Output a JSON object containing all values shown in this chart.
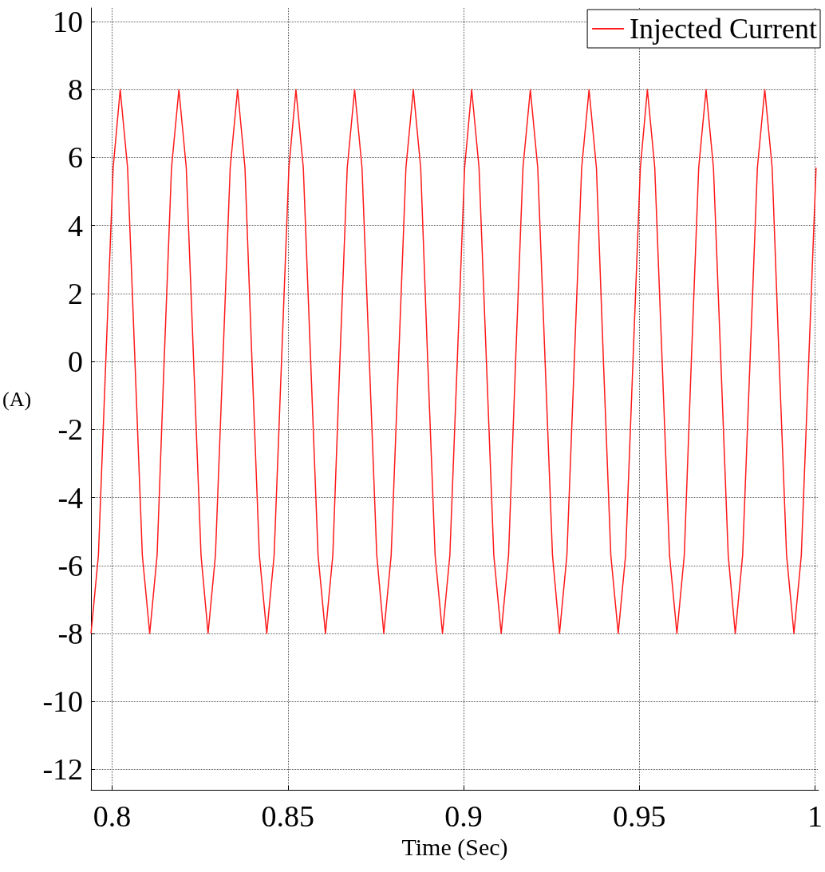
{
  "chart_data": {
    "type": "line",
    "xlabel": "Time (Sec)",
    "ylabel": "(A)",
    "xlim": [
      0.794,
      1.001
    ],
    "ylim": [
      -12.6,
      10.4
    ],
    "xticks": [
      0.8,
      0.85,
      0.9,
      0.95,
      1
    ],
    "yticks": [
      -12,
      -10,
      -8,
      -6,
      -4,
      -2,
      0,
      2,
      4,
      6,
      8,
      10
    ],
    "grid": true,
    "legend": "top right",
    "series": [
      {
        "name": "Injected Current",
        "color": "#ff1a1a",
        "x": [
          0.794,
          0.7961,
          0.7982,
          0.8003,
          0.8023,
          0.8044,
          0.8065,
          0.8086,
          0.8107,
          0.8128,
          0.8148,
          0.8169,
          0.819,
          0.8211,
          0.8232,
          0.8253,
          0.8273,
          0.8294,
          0.8315,
          0.8336,
          0.8357,
          0.8378,
          0.8398,
          0.8419,
          0.844,
          0.8461,
          0.8482,
          0.8503,
          0.8523,
          0.8544,
          0.8565,
          0.8586,
          0.8607,
          0.8628,
          0.8648,
          0.8669,
          0.869,
          0.8711,
          0.8732,
          0.8753,
          0.8773,
          0.8794,
          0.8815,
          0.8836,
          0.8857,
          0.8878,
          0.8898,
          0.8919,
          0.894,
          0.8961,
          0.8982,
          0.9003,
          0.9023,
          0.9044,
          0.9065,
          0.9086,
          0.9107,
          0.9128,
          0.9148,
          0.9169,
          0.919,
          0.9211,
          0.9232,
          0.9253,
          0.9273,
          0.9294,
          0.9315,
          0.9336,
          0.9357,
          0.9378,
          0.9398,
          0.9419,
          0.944,
          0.9461,
          0.9482,
          0.9503,
          0.9523,
          0.9544,
          0.9565,
          0.9586,
          0.9607,
          0.9628,
          0.9648,
          0.9669,
          0.969,
          0.9711,
          0.9732,
          0.9753,
          0.9773,
          0.9794,
          0.9815,
          0.9836,
          0.9857,
          0.9878,
          0.9898,
          0.9919,
          0.994,
          0.9961,
          0.9982,
          1.0003
        ],
        "values": [
          -8,
          -5.7,
          0,
          5.7,
          8,
          5.7,
          0,
          -5.7,
          -8,
          -5.7,
          0,
          5.7,
          8,
          5.7,
          0,
          -5.7,
          -8,
          -5.7,
          0,
          5.7,
          8,
          5.7,
          0,
          -5.7,
          -8,
          -5.7,
          0,
          5.7,
          8,
          5.7,
          0,
          -5.7,
          -8,
          -5.7,
          0,
          5.7,
          8,
          5.7,
          0,
          -5.7,
          -8,
          -5.7,
          0,
          5.7,
          8,
          5.7,
          0,
          -5.7,
          -8,
          -5.7,
          0,
          5.7,
          8,
          5.7,
          0,
          -5.7,
          -8,
          -5.7,
          0,
          5.7,
          8,
          5.7,
          0,
          -5.7,
          -8,
          -5.7,
          0,
          5.7,
          8,
          5.7,
          0,
          -5.7,
          -8,
          -5.7,
          0,
          5.7,
          8,
          5.7,
          0,
          -5.7,
          -8,
          -5.7,
          0,
          5.7,
          8,
          5.7,
          0,
          -5.7,
          -8,
          -5.7,
          0,
          5.7,
          8,
          5.7,
          0,
          -5.7,
          -8,
          -5.7,
          0,
          5.7
        ]
      }
    ]
  }
}
